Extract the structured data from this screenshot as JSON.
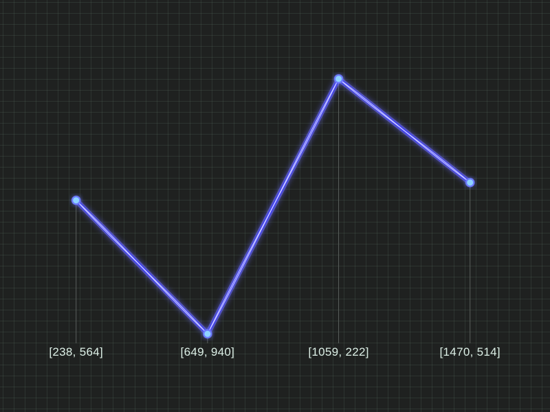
{
  "chart_data": {
    "type": "line",
    "grid": true,
    "series": [
      {
        "points": [
          {
            "x": 238,
            "y": 564,
            "label": "[238, 564]"
          },
          {
            "x": 649,
            "y": 940,
            "label": "[649, 940]"
          },
          {
            "x": 1059,
            "y": 222,
            "label": "[1059, 222]"
          },
          {
            "x": 1470,
            "y": 514,
            "label": "[1470, 514]"
          }
        ]
      }
    ],
    "xlim": [
      0,
      1720
    ],
    "ylim": [
      1160,
      0
    ]
  },
  "colors": {
    "background": "#1f2120",
    "grid": "#3a4640",
    "line": "#3d3dff",
    "line_glow": "#6a6aff",
    "line_core": "#e8e8ff",
    "marker_fill": "#8fd3ff",
    "marker_stroke": "#6d7bff",
    "drop_line": "#5a5f5c",
    "label": "#dcefe6"
  }
}
